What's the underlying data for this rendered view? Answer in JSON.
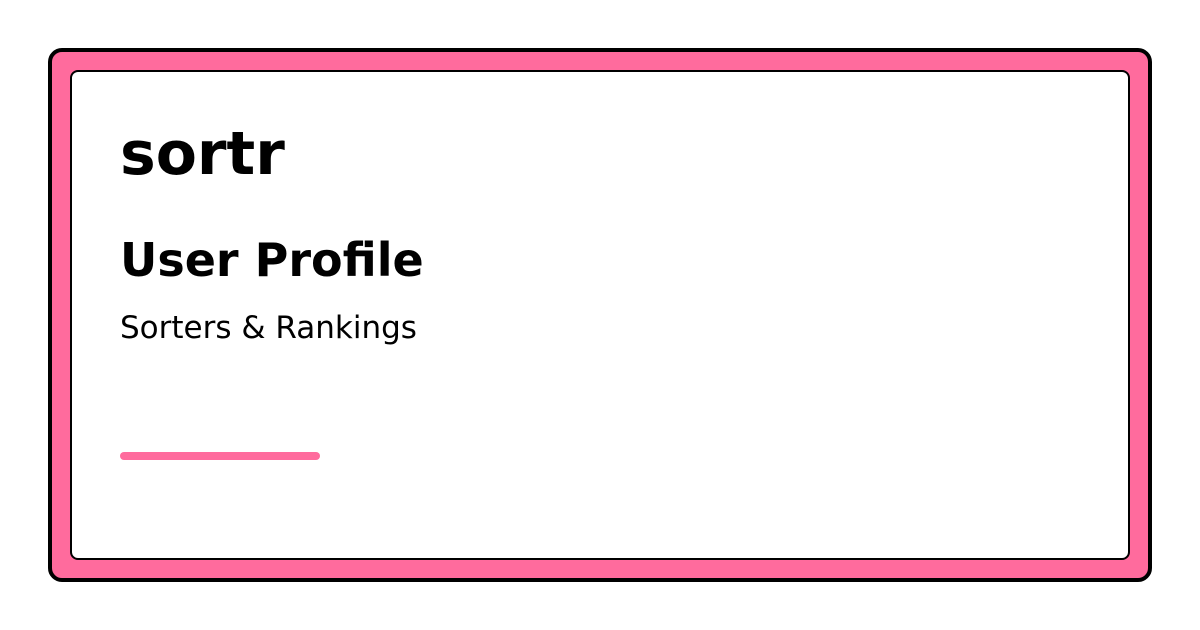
{
  "brand": {
    "name": "sortr"
  },
  "page": {
    "title": "User Profile",
    "subtitle": "Sorters & Rankings"
  },
  "colors": {
    "accent": "#ff6b9d",
    "border": "#000000",
    "background": "#ffffff",
    "text": "#000000"
  }
}
